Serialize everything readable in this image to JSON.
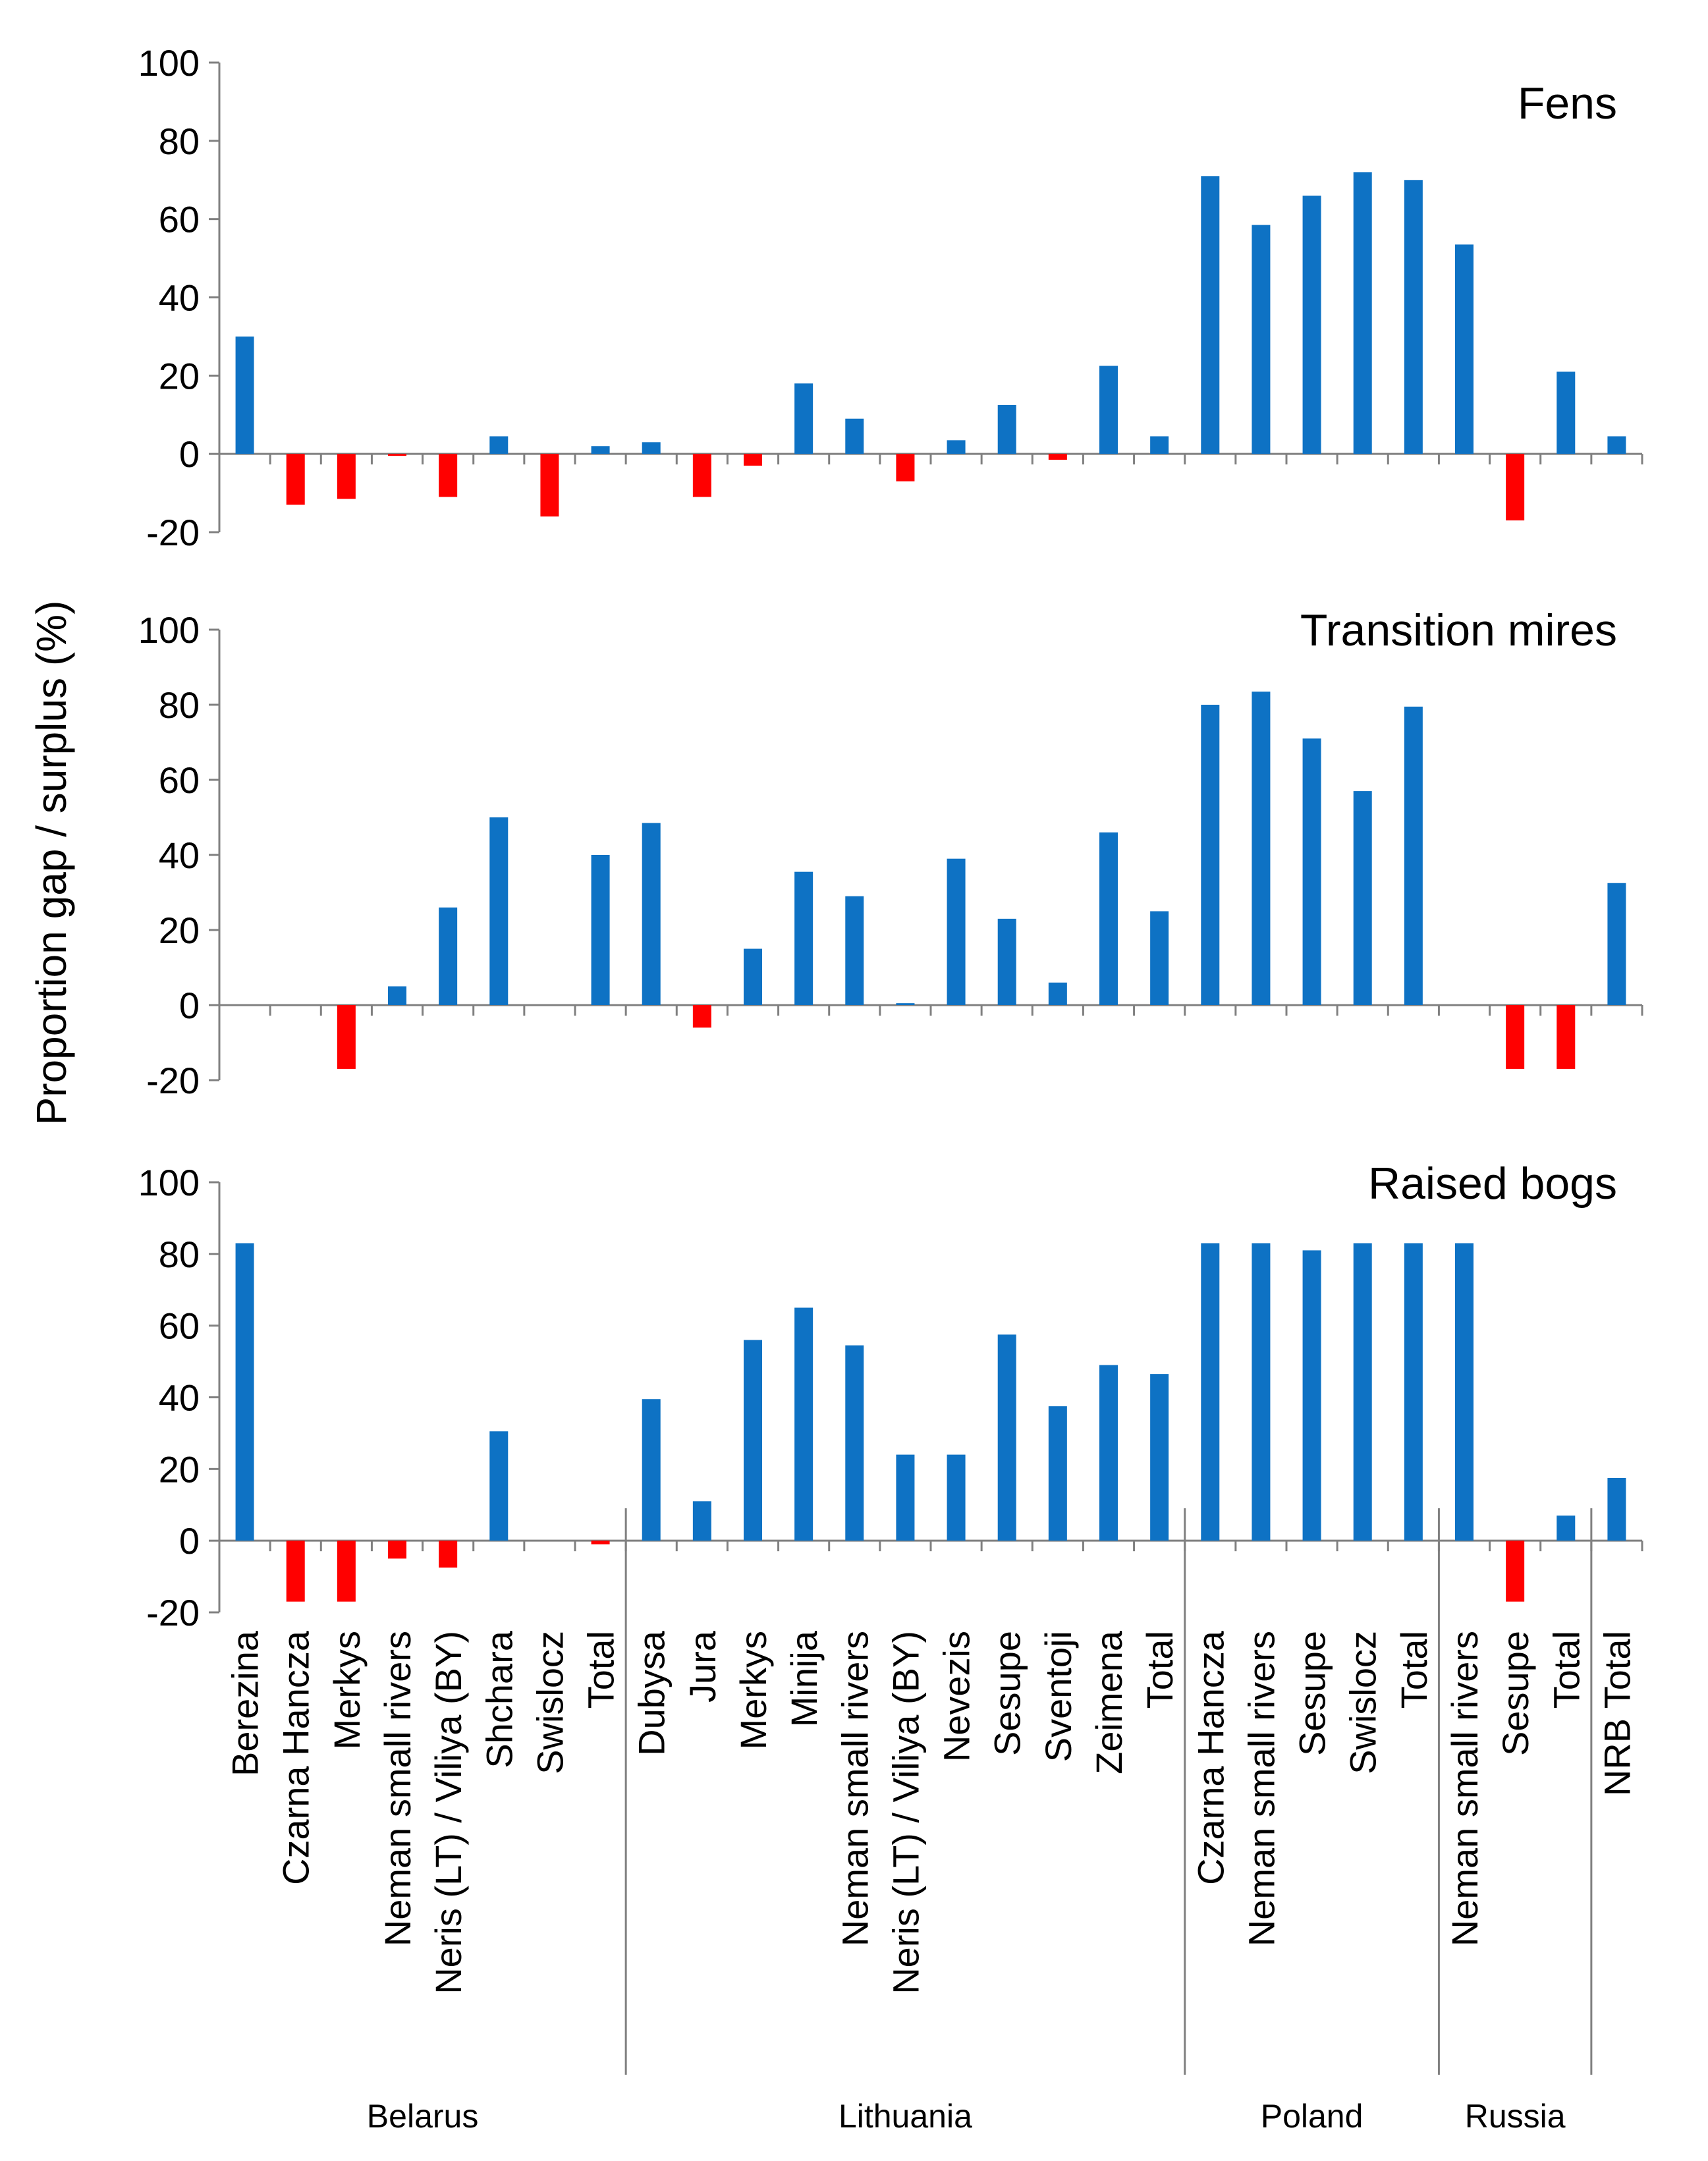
{
  "chart_data": {
    "type": "bar",
    "ylabel": "Proportion gap / surplus (%)",
    "ylim": [
      -20,
      100
    ],
    "yticks": [
      -20,
      0,
      20,
      40,
      60,
      80,
      100
    ],
    "colors": {
      "positive": "#0E72C4",
      "negative": "#FF0000"
    },
    "categories": [
      "Berezina",
      "Czarna Hancza",
      "Merkys",
      "Neman small rivers",
      "Neris (LT) / Viliya (BY)",
      "Shchara",
      "Swislocz",
      "Total",
      "Dubysa",
      "Jura",
      "Merkys",
      "Minija",
      "Neman small rivers",
      "Neris (LT) / Viliya (BY)",
      "Nevezis",
      "Sesupe",
      "Sventoji",
      "Zeimena",
      "Total",
      "Czarna Hancza",
      "Neman small rivers",
      "Sesupe",
      "Swislocz",
      "Total",
      "Neman small rivers",
      "Sesupe",
      "Total",
      "NRB Total"
    ],
    "groups": [
      {
        "name": "Belarus",
        "count": 8
      },
      {
        "name": "Lithuania",
        "count": 11
      },
      {
        "name": "Poland",
        "count": 5
      },
      {
        "name": "Russia",
        "count": 3
      },
      {
        "name": "",
        "count": 1
      }
    ],
    "series": [
      {
        "name": "Fens",
        "values": [
          30,
          -13,
          -11.5,
          -0.5,
          -11,
          4.5,
          -16,
          2,
          3,
          -11,
          -3,
          18,
          9,
          -7,
          3.5,
          12.5,
          -1.5,
          22.5,
          4.5,
          71,
          58.5,
          66,
          72,
          70,
          53.5,
          -17,
          21,
          4.5
        ]
      },
      {
        "name": "Transition mires",
        "values": [
          0,
          0,
          -17,
          5,
          26,
          50,
          0,
          40,
          48.5,
          -6,
          15,
          35.5,
          29,
          0.5,
          39,
          23,
          6,
          46,
          25,
          80,
          83.5,
          71,
          57,
          79.5,
          0,
          -17,
          -17,
          32.5
        ]
      },
      {
        "name": "Raised bogs",
        "values": [
          83,
          -17,
          -17,
          -5,
          -7.5,
          30.5,
          0,
          -1,
          39.5,
          11,
          56,
          65,
          54.5,
          24,
          24,
          57.5,
          37.5,
          49,
          46.5,
          83,
          83,
          81,
          83,
          83,
          83,
          -17,
          7,
          17.5
        ]
      }
    ]
  }
}
